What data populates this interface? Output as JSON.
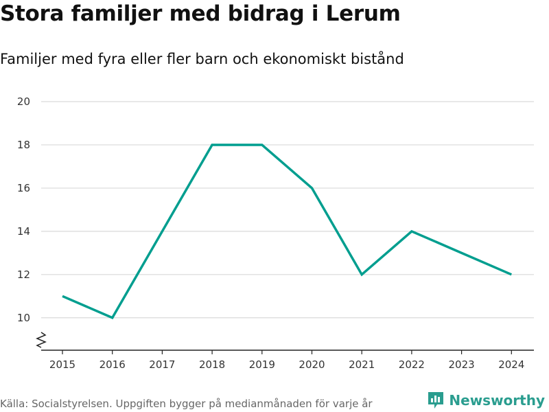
{
  "title": "Stora familjer med bidrag i Lerum",
  "subtitle": "Familjer med fyra eller fler barn och ekonomiskt bistånd",
  "source": "Källa: Socialstyrelsen. Uppgiften bygger på medianmånaden för varje år",
  "brand": {
    "name": "Newsworthy",
    "icon": "newsworthy-logo-icon"
  },
  "colors": {
    "line": "#009e8f",
    "grid": "#d9d9d9",
    "axis": "#222222",
    "brand": "#2a9d8f"
  },
  "chart_data": {
    "type": "line",
    "title": "Stora familjer med bidrag i Lerum",
    "subtitle": "Familjer med fyra eller fler barn och ekonomiskt bistånd",
    "xlabel": "",
    "ylabel": "",
    "categories": [
      "2015",
      "2016",
      "2017",
      "2018",
      "2019",
      "2020",
      "2021",
      "2022",
      "2023",
      "2024"
    ],
    "series": [
      {
        "name": "Familjer med fyra eller fler barn och ekonomiskt bistånd",
        "values": [
          11,
          10,
          14,
          18,
          18,
          16,
          12,
          14,
          13,
          12
        ]
      }
    ],
    "yticks": [
      10,
      12,
      14,
      16,
      18,
      20
    ],
    "ylim": [
      8.5,
      20
    ],
    "axis_break": true,
    "grid": true
  }
}
